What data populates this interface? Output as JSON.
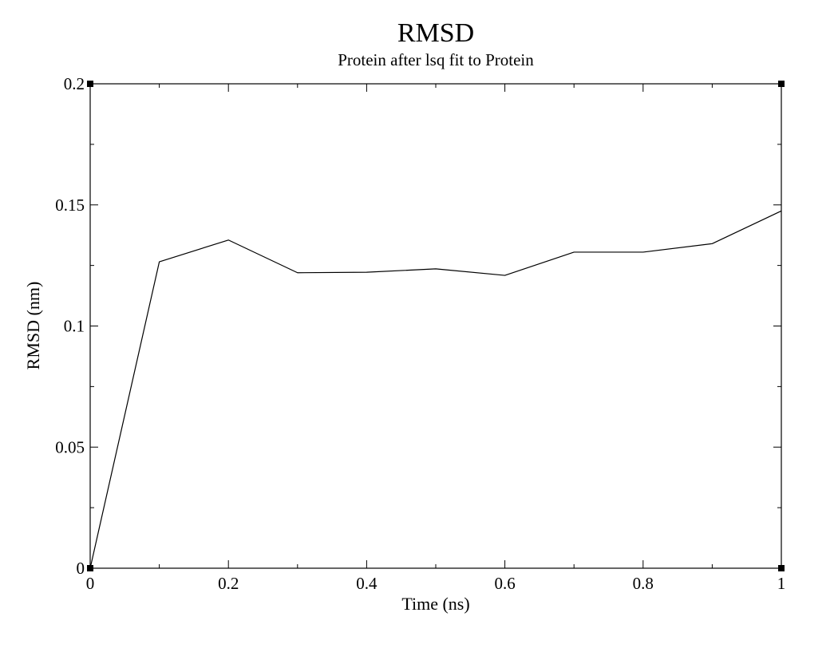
{
  "chart_data": {
    "type": "line",
    "title": "RMSD",
    "subtitle": "Protein after lsq fit to Protein",
    "xlabel": "Time (ns)",
    "ylabel": "RMSD (nm)",
    "xlim": [
      0,
      1
    ],
    "ylim": [
      0,
      0.2
    ],
    "x_ticks": [
      0,
      0.2,
      0.4,
      0.6,
      0.8,
      1
    ],
    "x_tick_labels": [
      "0",
      "0.2",
      "0.4",
      "0.6",
      "0.8",
      "1"
    ],
    "y_ticks": [
      0,
      0.05,
      0.1,
      0.15,
      0.2
    ],
    "y_tick_labels": [
      "0",
      "0.05",
      "0.1",
      "0.15",
      "0.2"
    ],
    "grid": false,
    "series": [
      {
        "x": [
          0,
          0.1,
          0.2,
          0.3,
          0.4,
          0.5,
          0.6,
          0.7,
          0.8,
          0.9,
          1.0
        ],
        "values": [
          0.0,
          0.1265,
          0.1355,
          0.122,
          0.1222,
          0.1236,
          0.1209,
          0.1305,
          0.1305,
          0.134,
          0.1475
        ],
        "color": "#000000"
      }
    ]
  }
}
